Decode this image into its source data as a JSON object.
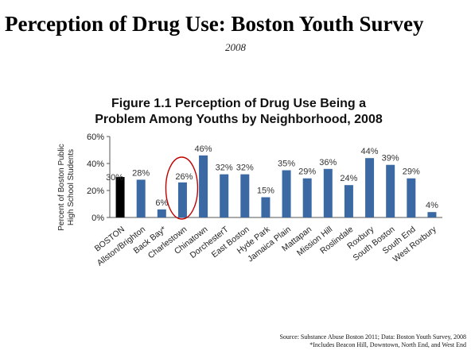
{
  "slide": {
    "title": "Perception of Drug Use: Boston Youth Survey",
    "year": "2008"
  },
  "chart_data": {
    "type": "bar",
    "title": "Figure 1.1 Perception of Drug Use Being a Problem Among Youths by Neighborhood, 2008",
    "title_lines": [
      "Figure 1.1 Perception of Drug Use Being a",
      "Problem Among Youths by Neighborhood, 2008"
    ],
    "ylabel": "Percent of Boston Public High School Students",
    "ylabel_lines": [
      "Percent of Boston Public",
      "High School Students"
    ],
    "xlabel": "",
    "ylim": [
      0,
      60
    ],
    "yticks": [
      0,
      20,
      40,
      60
    ],
    "ytick_labels": [
      "0%",
      "20%",
      "40%",
      "60%"
    ],
    "categories": [
      "BOSTON",
      "Allston/Brighton",
      "Back Bay*",
      "Charlestown",
      "Chinatown",
      "DorchesterT",
      "East Boston",
      "Hyde Park",
      "Jamaica Plain",
      "Mattapan",
      "Mission Hill",
      "Roslindale",
      "Roxbury",
      "South Boston",
      "South End",
      "West Roxbury"
    ],
    "values": [
      30,
      28,
      6,
      26,
      46,
      32,
      32,
      15,
      35,
      29,
      36,
      24,
      44,
      39,
      29,
      4
    ],
    "value_labels": [
      "30%",
      "28%",
      "6%",
      "26%",
      "46%",
      "32%",
      "32%",
      "15%",
      "35%",
      "29%",
      "36%",
      "24%",
      "44%",
      "39%",
      "29%",
      "4%"
    ],
    "grid": false,
    "legend": "none",
    "colors": {
      "highlight_bar": "#000000",
      "bar": "#3b69a4",
      "circle": "#c00000"
    },
    "highlight_category": "BOSTON",
    "circled_category": "Charlestown"
  },
  "source": {
    "line1": "Source: Substance Abuse Boston 2011; Data: Boston Youth Survey, 2008",
    "line2": "*Includes Beacon Hill, Downtown, North End, and West End"
  }
}
